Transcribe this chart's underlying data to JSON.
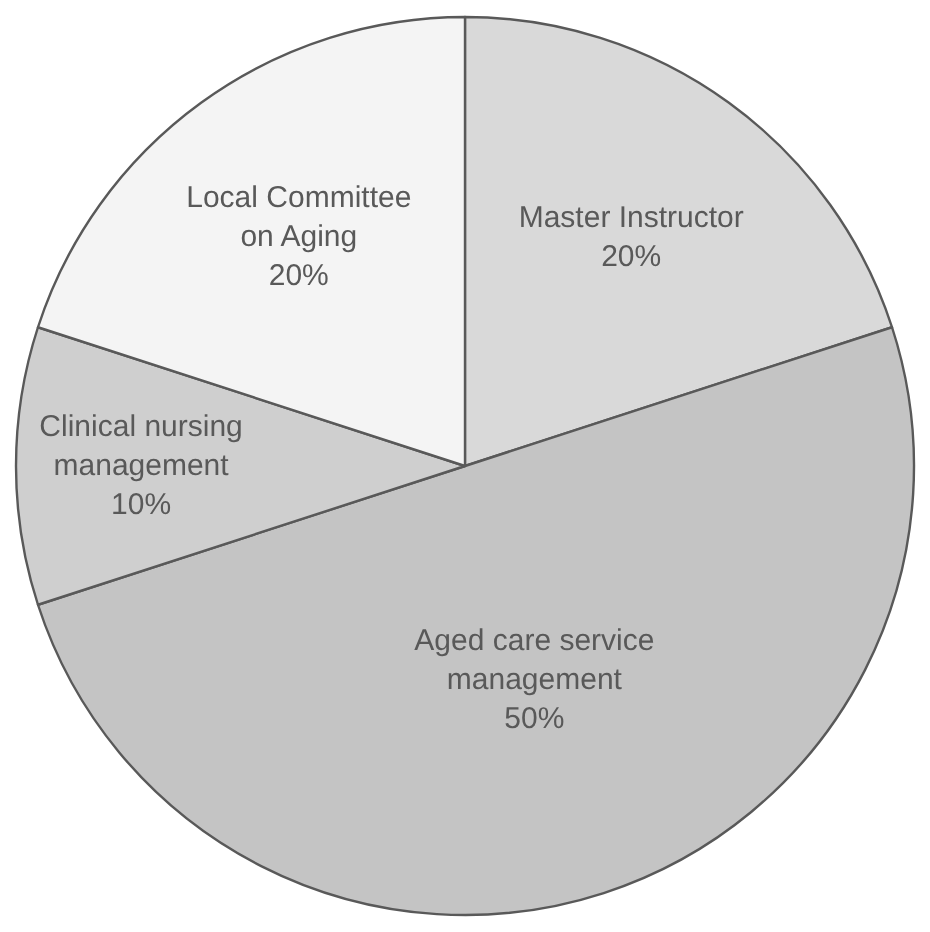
{
  "chart_data": {
    "type": "pie",
    "categories": [
      "Master Instructor",
      "Aged care service management",
      "Clinical nursing management",
      "Local Committee on Aging"
    ],
    "values": [
      20,
      50,
      10,
      20
    ],
    "colors": [
      "#d9d9d9",
      "#c4c4c4",
      "#cfcfcf",
      "#f4f4f4"
    ],
    "value_labels": [
      "20%",
      "50%",
      "10%",
      "20%"
    ],
    "legend": false
  }
}
